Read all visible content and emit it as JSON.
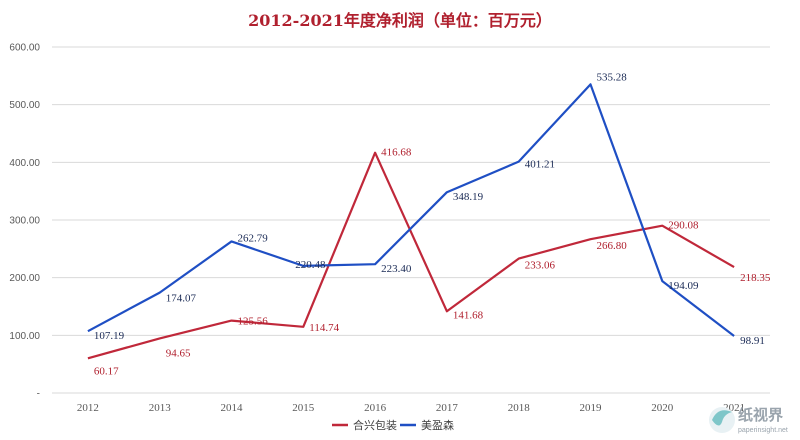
{
  "chart_data": {
    "type": "line",
    "title": "2012-2021年度净利润（单位：百万元）",
    "categories": [
      "2012",
      "2013",
      "2014",
      "2015",
      "2016",
      "2017",
      "2018",
      "2019",
      "2020",
      "2021"
    ],
    "series": [
      {
        "name": "合兴包装",
        "color": "#c0283a",
        "values": [
          60.17,
          94.65,
          125.56,
          114.74,
          416.68,
          141.68,
          233.06,
          266.8,
          290.08,
          218.35
        ]
      },
      {
        "name": "美盈森",
        "color": "#1f4fc4",
        "values": [
          107.19,
          174.07,
          262.79,
          220.48,
          223.4,
          348.19,
          401.21,
          535.28,
          194.09,
          98.91
        ]
      }
    ],
    "value_labels": [
      [
        "60.17",
        "94.65",
        "125.56",
        "114.74",
        "416.68",
        "141.68",
        "233.06",
        "266.80",
        "290.08",
        "218.35"
      ],
      [
        "107.19",
        "174.07",
        "262.79",
        "220.48",
        "223.40",
        "348.19",
        "401.21",
        "535.28",
        "194.09",
        "98.91"
      ]
    ],
    "yticks": [
      "-",
      "100.00",
      "200.00",
      "300.00",
      "400.00",
      "500.00",
      "600.00"
    ],
    "ylim": [
      0,
      600
    ],
    "grid": true,
    "legend_position": "bottom"
  },
  "watermark": {
    "text": "纸视界",
    "url": "paperinsight.net"
  }
}
